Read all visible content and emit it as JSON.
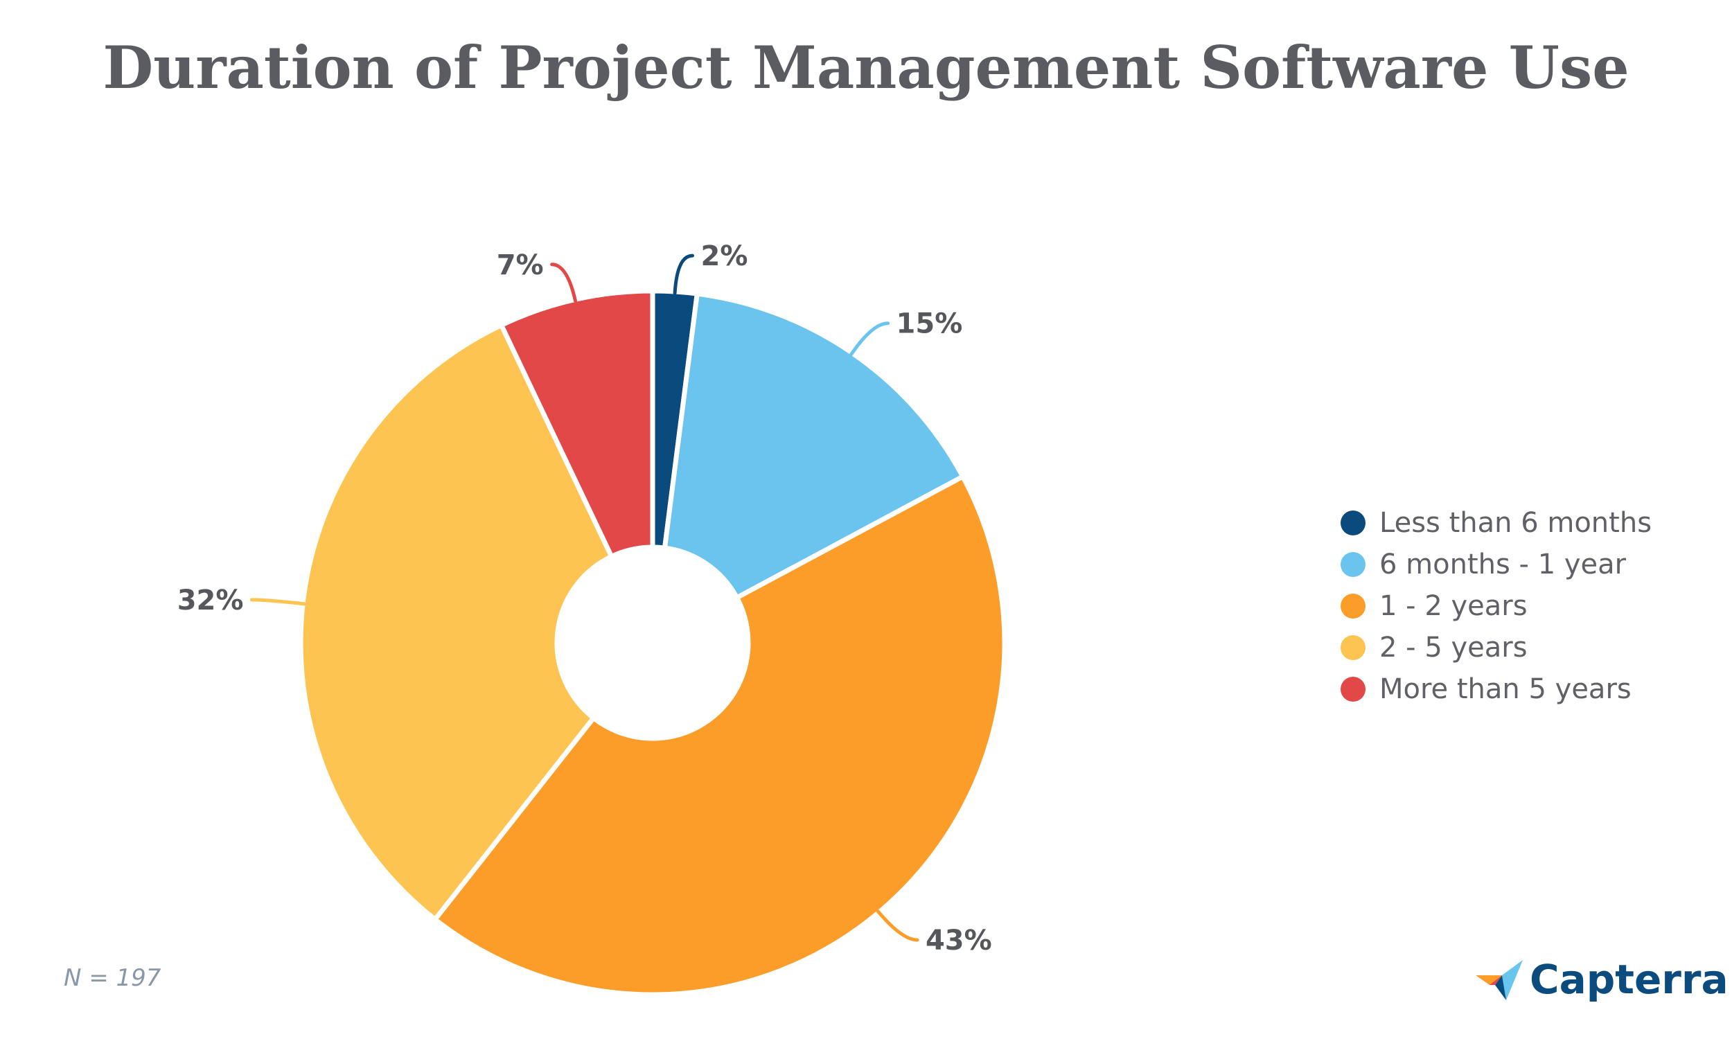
{
  "chart_data": {
    "type": "pie",
    "title": "Duration of Project Management Software Use",
    "categories": [
      "Less than 6 months",
      "6 months - 1 year",
      "1 - 2 years",
      "2 - 5 years",
      "More than 5 years"
    ],
    "values": [
      2,
      15,
      43,
      32,
      7
    ],
    "value_labels": [
      "2%",
      "15%",
      "43%",
      "32%",
      "7%"
    ],
    "colors": [
      "#0b4a7d",
      "#6bc4ed",
      "#fd9d29",
      "#fdc452",
      "#e24848"
    ],
    "donut": true,
    "legend_position": "right"
  },
  "footnote": "N = 197",
  "brand": {
    "name": "Capterra",
    "icon": "capterra-logo-icon"
  }
}
